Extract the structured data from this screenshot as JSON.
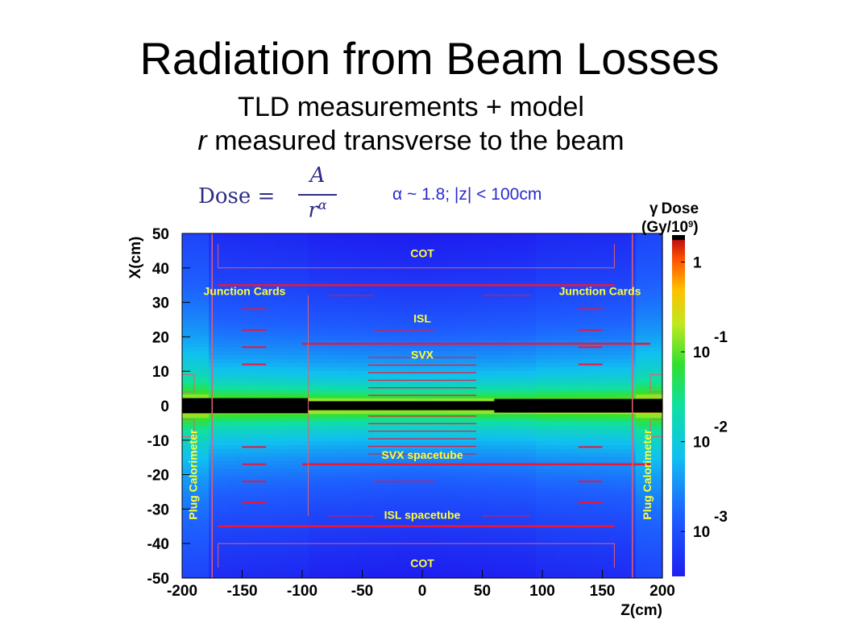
{
  "slide": {
    "title": "Radiation from Beam Losses",
    "subtitle_line1": "TLD measurements + model",
    "subtitle_line2_italic": "r",
    "subtitle_line2_rest": " measured transverse to the beam",
    "formula": {
      "lhs": "Dose =",
      "numerator": "A",
      "denominator": "r",
      "exponent": "α"
    },
    "alpha_note": "α ~ 1.8;  |z| < 100cm"
  },
  "chart_data": {
    "type": "heatmap",
    "xlabel": "Z(cm)",
    "ylabel": "X(cm)",
    "xlim": [
      -200,
      200
    ],
    "ylim": [
      -50,
      50
    ],
    "x_ticks": [
      -200,
      -150,
      -100,
      -50,
      0,
      50,
      100,
      150,
      200
    ],
    "y_ticks": [
      -50,
      -40,
      -30,
      -20,
      -10,
      0,
      10,
      20,
      30,
      40,
      50
    ],
    "grid": false,
    "colorbar": {
      "title_symbol": "γ",
      "title_line1": "Dose",
      "title_line2": "(Gy/10",
      "title_sup": "9",
      "title_close": ")",
      "scale": "log",
      "labels": [
        {
          "base": "1",
          "exp": "",
          "value": 1
        },
        {
          "base": "10",
          "exp": "-1",
          "value": 0.1
        },
        {
          "base": "10",
          "exp": "-2",
          "value": 0.01
        },
        {
          "base": "10",
          "exp": "-3",
          "value": 0.001
        }
      ]
    },
    "region_labels": [
      {
        "text": "COT",
        "z": 0,
        "x": 44
      },
      {
        "text": "Junction Cards",
        "z": -148,
        "x": 33
      },
      {
        "text": "Junction Cards",
        "z": 148,
        "x": 33
      },
      {
        "text": "ISL",
        "z": 0,
        "x": 25
      },
      {
        "text": "SVX",
        "z": 0,
        "x": 14.5
      },
      {
        "text": "SVX spacetube",
        "z": 0,
        "x": -14.5
      },
      {
        "text": "ISL spacetube",
        "z": 0,
        "x": -32
      },
      {
        "text": "COT",
        "z": 0,
        "x": -46
      },
      {
        "text": "Plug Calorimeter",
        "z": -190,
        "x": -20,
        "vertical": true
      },
      {
        "text": "Plug Calorimeter",
        "z": 188,
        "x": -20,
        "vertical": true
      }
    ],
    "alpha": 1.8,
    "colors": {
      "beam": "#000000",
      "structure": "#e8183b",
      "label": "#ffff33",
      "outline": "#e06070"
    }
  }
}
